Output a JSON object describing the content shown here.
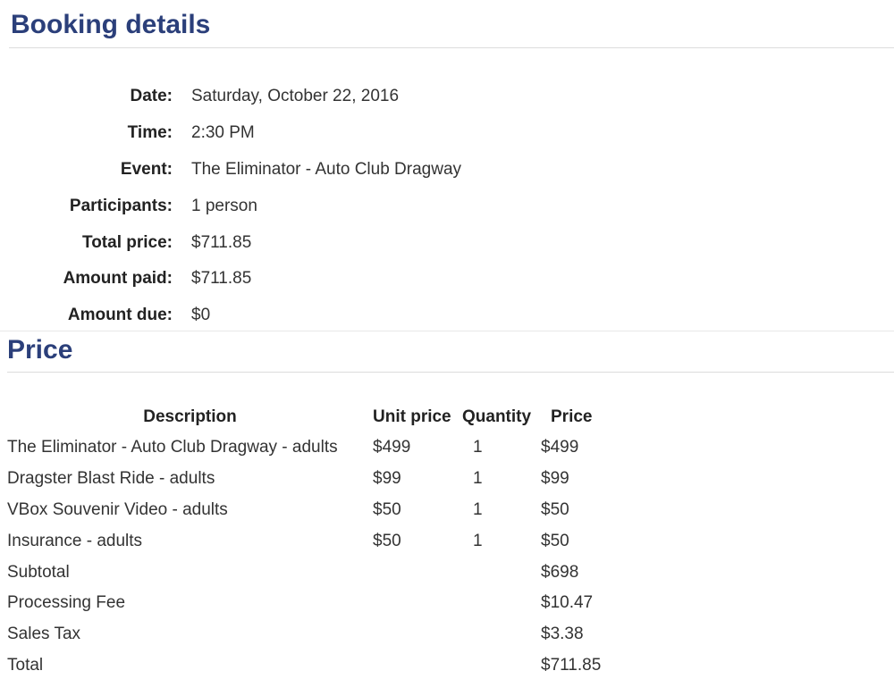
{
  "booking": {
    "title": "Booking details",
    "rows": [
      {
        "label": "Date:",
        "value": "Saturday, October 22, 2016"
      },
      {
        "label": "Time:",
        "value": "2:30 PM"
      },
      {
        "label": "Event:",
        "value": "The Eliminator - Auto Club Dragway"
      },
      {
        "label": "Participants:",
        "value": "1 person"
      },
      {
        "label": "Total price:",
        "value": "$711.85"
      },
      {
        "label": "Amount paid:",
        "value": "$711.85"
      },
      {
        "label": "Amount due:",
        "value": "$0"
      }
    ]
  },
  "price": {
    "title": "Price",
    "headers": [
      "Description",
      "Unit price",
      "Quantity",
      "Price"
    ],
    "rows": [
      [
        "The Eliminator - Auto Club Dragway - adults",
        "$499",
        "1",
        "$499"
      ],
      [
        "Dragster Blast Ride - adults",
        "$99",
        "1",
        "$99"
      ],
      [
        "VBox Souvenir Video - adults",
        "$50",
        "1",
        "$50"
      ],
      [
        "Insurance - adults",
        "$50",
        "1",
        "$50"
      ],
      [
        "Subtotal",
        "",
        "",
        "$698"
      ],
      [
        "Processing Fee",
        "",
        "",
        "$10.47"
      ],
      [
        "Sales Tax",
        "",
        "",
        "$3.38"
      ],
      [
        "Total",
        "",
        "",
        "$711.85"
      ]
    ]
  },
  "colors": {
    "heading": "#2b3f7a",
    "rule": "#dcdcdc"
  }
}
